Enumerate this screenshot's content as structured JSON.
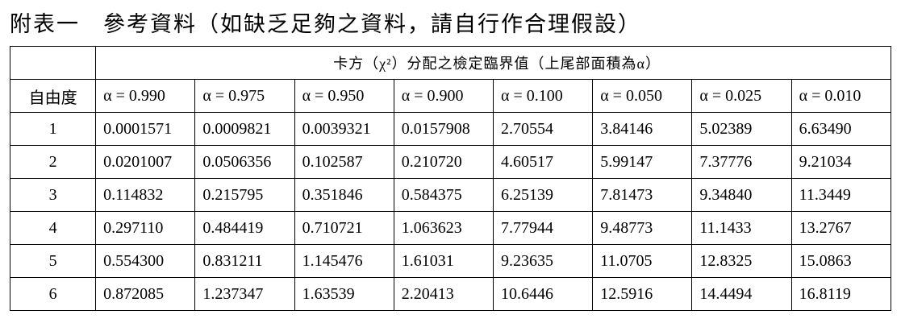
{
  "title": "附表一　參考資料（如缺乏足夠之資料，請自行作合理假設）",
  "table": {
    "caption": "卡方（χ²）分配之檢定臨界值（上尾部面積為α）",
    "columns": [
      "自由度",
      "α = 0.990",
      "α = 0.975",
      "α = 0.950",
      "α = 0.900",
      "α = 0.100",
      "α = 0.050",
      "α = 0.025",
      "α = 0.010"
    ],
    "rows": [
      [
        "1",
        "0.0001571",
        "0.0009821",
        "0.0039321",
        "0.0157908",
        "2.70554",
        "3.84146",
        "5.02389",
        "6.63490"
      ],
      [
        "2",
        "0.0201007",
        "0.0506356",
        "0.102587",
        "0.210720",
        "4.60517",
        "5.99147",
        "7.37776",
        "9.21034"
      ],
      [
        "3",
        "0.114832",
        "0.215795",
        "0.351846",
        "0.584375",
        "6.25139",
        "7.81473",
        "9.34840",
        "11.3449"
      ],
      [
        "4",
        "0.297110",
        "0.484419",
        "0.710721",
        "1.063623",
        "7.77944",
        "9.48773",
        "11.1433",
        "13.2767"
      ],
      [
        "5",
        "0.554300",
        "0.831211",
        "1.145476",
        "1.61031",
        "9.23635",
        "11.0705",
        "12.8325",
        "15.0863"
      ],
      [
        "6",
        "0.872085",
        "1.237347",
        "1.63539",
        "2.20413",
        "10.6446",
        "12.5916",
        "14.4494",
        "16.8119"
      ]
    ]
  }
}
